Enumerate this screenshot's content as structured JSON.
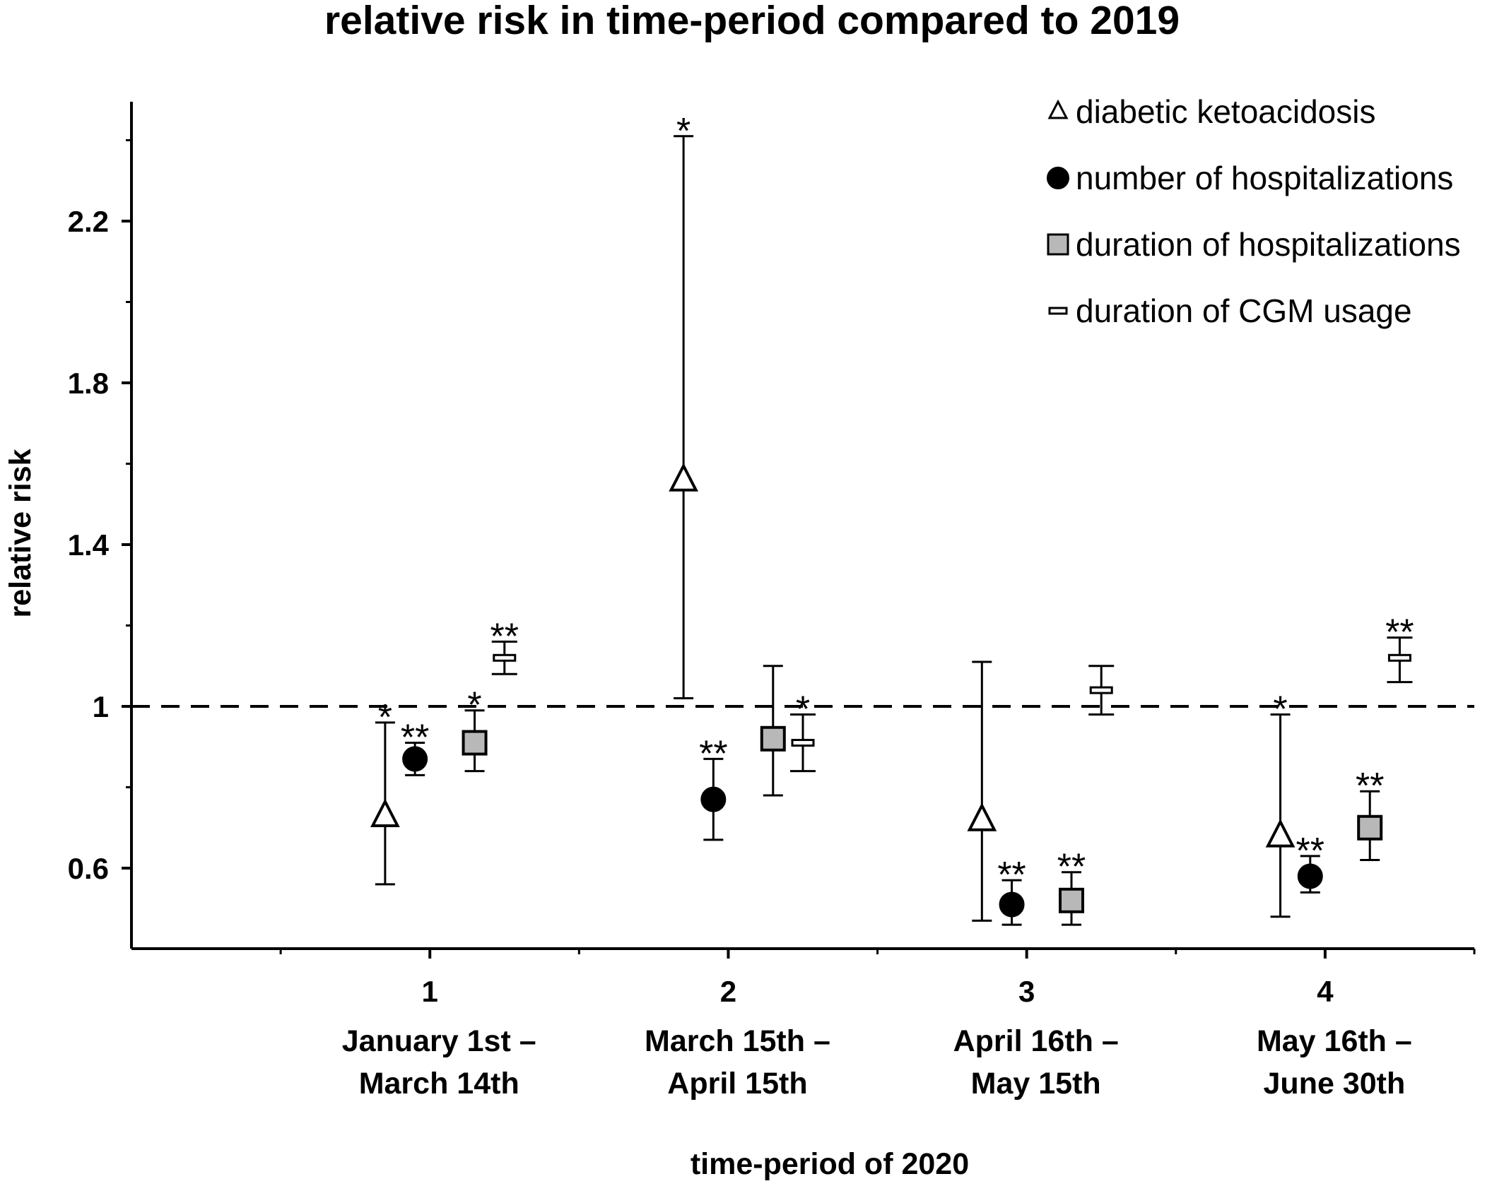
{
  "chart_data": {
    "type": "scatter",
    "title": "relative risk in time-period compared to 2019",
    "xlabel": "time-period of 2020",
    "ylabel": "relative risk",
    "ylim": [
      0.4,
      2.5
    ],
    "xlim": [
      0,
      4.5
    ],
    "y_ticks": [
      0.6,
      1.4,
      1.8,
      2.2
    ],
    "y_tick_labels": [
      "0.6",
      "1",
      "1.4",
      "1.8",
      "2.2"
    ],
    "y_tick_values": [
      0.6,
      1.0,
      1.4,
      1.8,
      2.2
    ],
    "x_ticks": [
      1,
      2,
      3,
      4
    ],
    "x_tick_labels": [
      "1",
      "2",
      "3",
      "4"
    ],
    "period_labels": [
      [
        "January 1st –",
        "March 14th"
      ],
      [
        "March 15th –",
        "April 15th"
      ],
      [
        "April 16th –",
        "May 15th"
      ],
      [
        "May 16th –",
        "June 30th"
      ]
    ],
    "reference_line": 1.0,
    "grid": false,
    "legend_position": "top-right",
    "series": [
      {
        "name": "diabetic ketoacidosis",
        "marker": "triangle",
        "color": "#ffffff",
        "offset": -0.15,
        "points": [
          {
            "x": 1,
            "y": 0.73,
            "low": 0.56,
            "high": 0.96,
            "sig": "*"
          },
          {
            "x": 2,
            "y": 1.56,
            "low": 1.02,
            "high": 2.41,
            "sig": "*"
          },
          {
            "x": 3,
            "y": 0.72,
            "low": 0.47,
            "high": 1.11,
            "sig": ""
          },
          {
            "x": 4,
            "y": 0.68,
            "low": 0.48,
            "high": 0.98,
            "sig": "*"
          }
        ]
      },
      {
        "name": "number of hospitalizations",
        "marker": "circle",
        "color": "#000000",
        "offset": -0.05,
        "points": [
          {
            "x": 1,
            "y": 0.87,
            "low": 0.83,
            "high": 0.91,
            "sig": "**"
          },
          {
            "x": 2,
            "y": 0.77,
            "low": 0.67,
            "high": 0.87,
            "sig": "**"
          },
          {
            "x": 3,
            "y": 0.51,
            "low": 0.46,
            "high": 0.57,
            "sig": "**"
          },
          {
            "x": 4,
            "y": 0.58,
            "low": 0.54,
            "high": 0.63,
            "sig": "**"
          }
        ]
      },
      {
        "name": "duration of hospitalizations",
        "marker": "square",
        "color": "#b8b8b8",
        "offset": 0.15,
        "points": [
          {
            "x": 1,
            "y": 0.91,
            "low": 0.84,
            "high": 0.99,
            "sig": "*"
          },
          {
            "x": 2,
            "y": 0.92,
            "low": 0.78,
            "high": 1.1,
            "sig": ""
          },
          {
            "x": 3,
            "y": 0.52,
            "low": 0.46,
            "high": 0.59,
            "sig": "**"
          },
          {
            "x": 4,
            "y": 0.7,
            "low": 0.62,
            "high": 0.79,
            "sig": "**"
          }
        ]
      },
      {
        "name": "duration of CGM usage",
        "marker": "bar",
        "color": "#ffffff",
        "offset": 0.25,
        "points": [
          {
            "x": 1,
            "y": 1.12,
            "low": 1.08,
            "high": 1.16,
            "sig": "**"
          },
          {
            "x": 2,
            "y": 0.91,
            "low": 0.84,
            "high": 0.98,
            "sig": "*"
          },
          {
            "x": 3,
            "y": 1.04,
            "low": 0.98,
            "high": 1.1,
            "sig": ""
          },
          {
            "x": 4,
            "y": 1.12,
            "low": 1.06,
            "high": 1.17,
            "sig": "**"
          }
        ]
      }
    ]
  }
}
